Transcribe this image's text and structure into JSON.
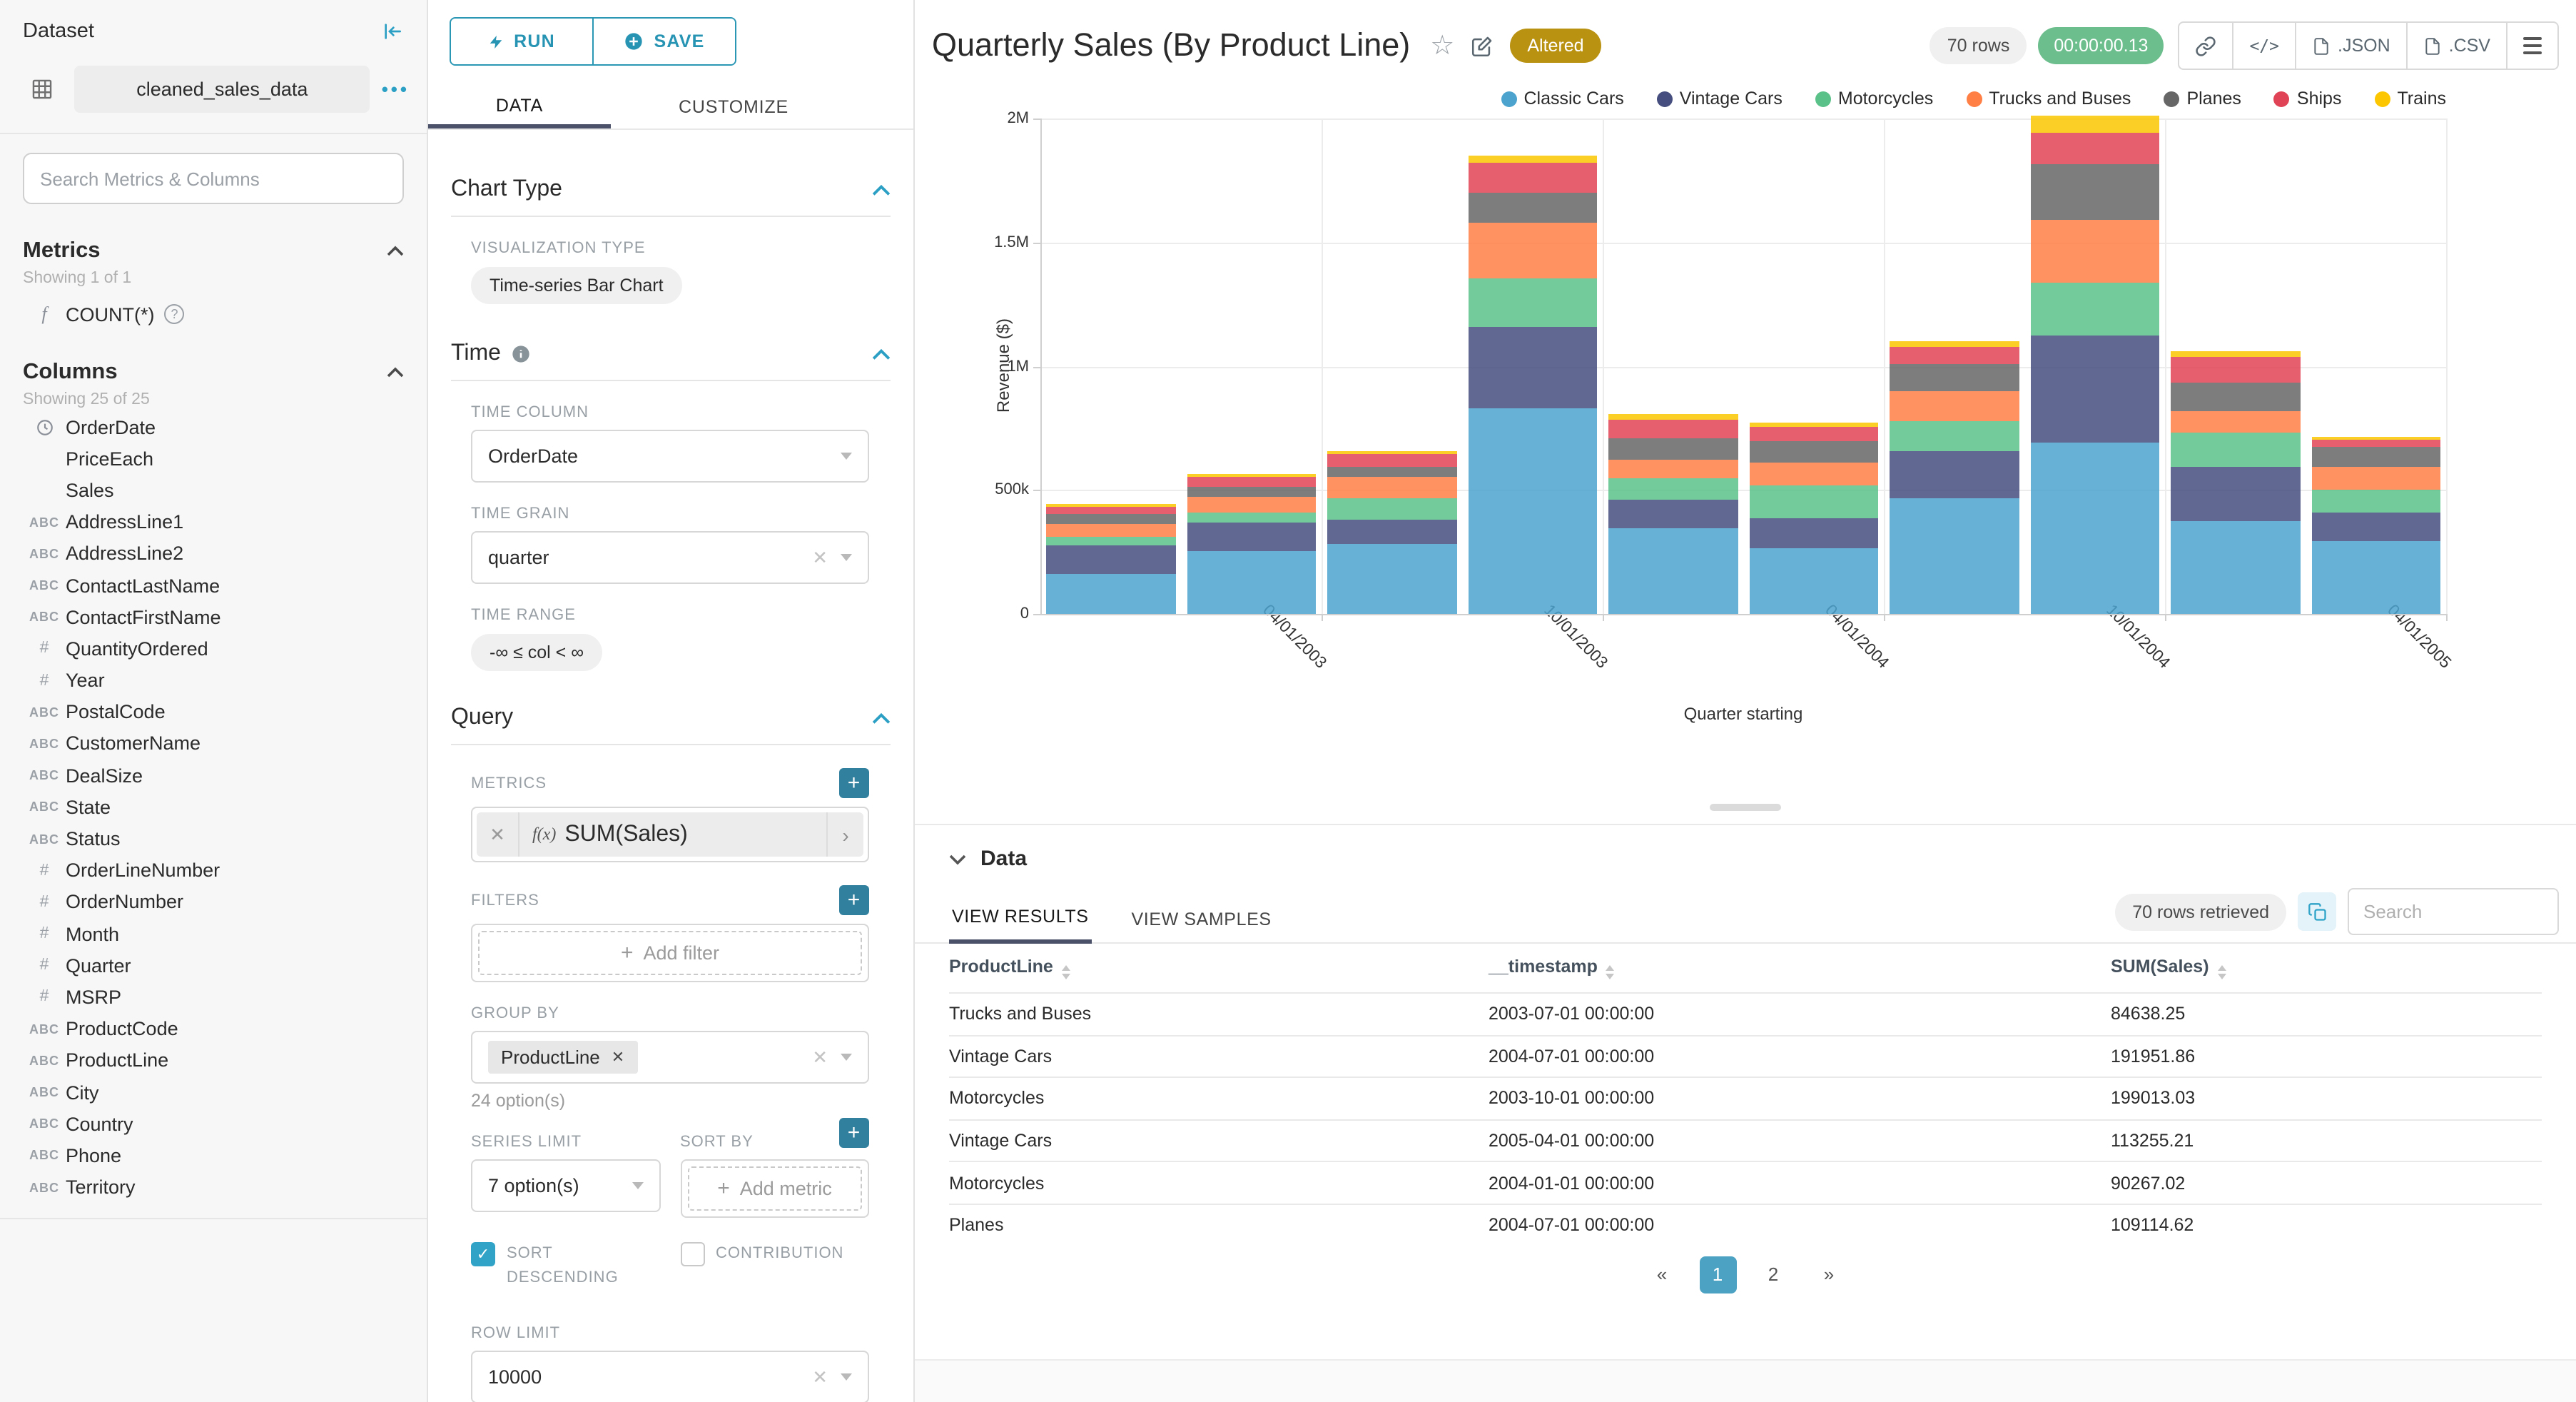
{
  "accent": {
    "teal": "#2ba0c4",
    "tab_underline": "#4a5169",
    "altered_gold": "#ba9212",
    "timer_green": "#6cbe8d",
    "pagination_blue": "#4ba2c3"
  },
  "sidebar": {
    "title": "Dataset",
    "dataset_name": "cleaned_sales_data",
    "more_icon": "•••",
    "search_placeholder": "Search Metrics & Columns",
    "metrics": {
      "header": "Metrics",
      "showing": "Showing 1 of 1",
      "items": [
        {
          "icon": "function-icon",
          "label": "COUNT(*)"
        }
      ]
    },
    "columns": {
      "header": "Columns",
      "showing": "Showing 25 of 25",
      "items": [
        {
          "type": "time",
          "label": "OrderDate"
        },
        {
          "type": "none",
          "label": "PriceEach"
        },
        {
          "type": "none",
          "label": "Sales"
        },
        {
          "type": "text",
          "label": "AddressLine1"
        },
        {
          "type": "text",
          "label": "AddressLine2"
        },
        {
          "type": "text",
          "label": "ContactLastName"
        },
        {
          "type": "text",
          "label": "ContactFirstName"
        },
        {
          "type": "num",
          "label": "QuantityOrdered"
        },
        {
          "type": "num",
          "label": "Year"
        },
        {
          "type": "text",
          "label": "PostalCode"
        },
        {
          "type": "text",
          "label": "CustomerName"
        },
        {
          "type": "text",
          "label": "DealSize"
        },
        {
          "type": "text",
          "label": "State"
        },
        {
          "type": "text",
          "label": "Status"
        },
        {
          "type": "num",
          "label": "OrderLineNumber"
        },
        {
          "type": "num",
          "label": "OrderNumber"
        },
        {
          "type": "num",
          "label": "Month"
        },
        {
          "type": "num",
          "label": "Quarter"
        },
        {
          "type": "num",
          "label": "MSRP"
        },
        {
          "type": "text",
          "label": "ProductCode"
        },
        {
          "type": "text",
          "label": "ProductLine"
        },
        {
          "type": "text",
          "label": "City"
        },
        {
          "type": "text",
          "label": "Country"
        },
        {
          "type": "text",
          "label": "Phone"
        },
        {
          "type": "text",
          "label": "Territory"
        }
      ]
    }
  },
  "controls": {
    "run_label": "RUN",
    "save_label": "SAVE",
    "tab_data": "DATA",
    "tab_customize": "CUSTOMIZE",
    "chart_type": {
      "header": "Chart Type",
      "viz_label": "VISUALIZATION TYPE",
      "viz_value": "Time-series Bar Chart"
    },
    "time": {
      "header": "Time",
      "time_column_label": "TIME COLUMN",
      "time_column": "OrderDate",
      "time_grain_label": "TIME GRAIN",
      "time_grain": "quarter",
      "time_range_label": "TIME RANGE",
      "time_range": "-∞ ≤ col < ∞"
    },
    "query": {
      "header": "Query",
      "metrics_label": "METRICS",
      "metric_fx": "f(x)",
      "metric_value": "SUM(Sales)",
      "filters_label": "FILTERS",
      "add_filter": "Add filter",
      "group_by_label": "GROUP BY",
      "group_by_chip": "ProductLine",
      "group_by_hint": "24 option(s)",
      "series_limit_label": "SERIES LIMIT",
      "series_limit": "7 option(s)",
      "sort_by_label": "SORT BY",
      "add_metric": "Add metric",
      "sort_descending_label": "SORT DESCENDING",
      "contribution_label": "CONTRIBUTION",
      "row_limit_label": "ROW LIMIT",
      "row_limit": "10000"
    }
  },
  "header": {
    "title": "Quarterly Sales (By Product Line)",
    "altered_badge": "Altered",
    "rows_badge": "70 rows",
    "timer_badge": "00:00:00.13",
    "export_json": ".JSON",
    "export_csv": ".CSV"
  },
  "chart_data": {
    "type": "bar",
    "stacked": true,
    "title": "Quarterly Sales (By Product Line)",
    "xlabel": "Quarter starting",
    "ylabel": "Revenue ($)",
    "ylim": [
      0,
      2000000
    ],
    "grid": true,
    "legend_position": "top-right",
    "x": [
      "2003-01-01",
      "2003-04-01",
      "2003-07-01",
      "2003-10-01",
      "2004-01-01",
      "2004-04-01",
      "2004-07-01",
      "2004-10-01",
      "2005-01-01",
      "2005-04-01"
    ],
    "x_tick_labels": [
      "04/01/2003",
      "10/01/2003",
      "04/01/2004",
      "10/01/2004",
      "04/01/2005"
    ],
    "y_ticks": [
      {
        "value": 0,
        "label": "0"
      },
      {
        "value": 500000,
        "label": "500k"
      },
      {
        "value": 1000000,
        "label": "1M"
      },
      {
        "value": 1500000,
        "label": "1.5M"
      },
      {
        "value": 2000000,
        "label": "2M"
      }
    ],
    "series": [
      {
        "name": "Classic Cars",
        "color": "#4ba3ce",
        "values": [
          160000,
          255000,
          282000,
          829000,
          345000,
          263000,
          465000,
          690000,
          376000,
          294000
        ]
      },
      {
        "name": "Vintage Cars",
        "color": "#454e7e",
        "values": [
          118000,
          116000,
          98000,
          328000,
          115000,
          125000,
          191952,
          433000,
          217000,
          113255
        ]
      },
      {
        "name": "Motorcycles",
        "color": "#5ac189",
        "values": [
          35000,
          38000,
          89000,
          199013,
          90267,
          128000,
          120000,
          214000,
          137000,
          94000
        ]
      },
      {
        "name": "Trucks and Buses",
        "color": "#ff7f44",
        "values": [
          50000,
          65000,
          84638,
          224000,
          75000,
          94000,
          123000,
          256000,
          86000,
          94000
        ]
      },
      {
        "name": "Planes",
        "color": "#666666",
        "values": [
          42000,
          41000,
          40000,
          120000,
          82000,
          86000,
          109115,
          223000,
          119000,
          81000
        ]
      },
      {
        "name": "Ships",
        "color": "#e04355",
        "values": [
          30000,
          36000,
          49000,
          119000,
          78000,
          60000,
          69000,
          128000,
          103000,
          27000
        ]
      },
      {
        "name": "Trains",
        "color": "#fcc700",
        "values": [
          10000,
          15000,
          14000,
          34000,
          22000,
          14000,
          25000,
          68000,
          25000,
          13000
        ]
      }
    ]
  },
  "results": {
    "section_title": "Data",
    "tab_results": "VIEW RESULTS",
    "tab_samples": "VIEW SAMPLES",
    "rows_retrieved": "70 rows retrieved",
    "search_placeholder": "Search",
    "columns": [
      "ProductLine",
      "__timestamp",
      "SUM(Sales)"
    ],
    "rows": [
      [
        "Trucks and Buses",
        "2003-07-01 00:00:00",
        "84638.25"
      ],
      [
        "Vintage Cars",
        "2004-07-01 00:00:00",
        "191951.86"
      ],
      [
        "Motorcycles",
        "2003-10-01 00:00:00",
        "199013.03"
      ],
      [
        "Vintage Cars",
        "2005-04-01 00:00:00",
        "113255.21"
      ],
      [
        "Motorcycles",
        "2004-01-01 00:00:00",
        "90267.02"
      ],
      [
        "Planes",
        "2004-07-01 00:00:00",
        "109114.62"
      ]
    ],
    "pagination": {
      "prev": "«",
      "pages": [
        "1",
        "2"
      ],
      "next": "»",
      "active_page": "1"
    }
  }
}
